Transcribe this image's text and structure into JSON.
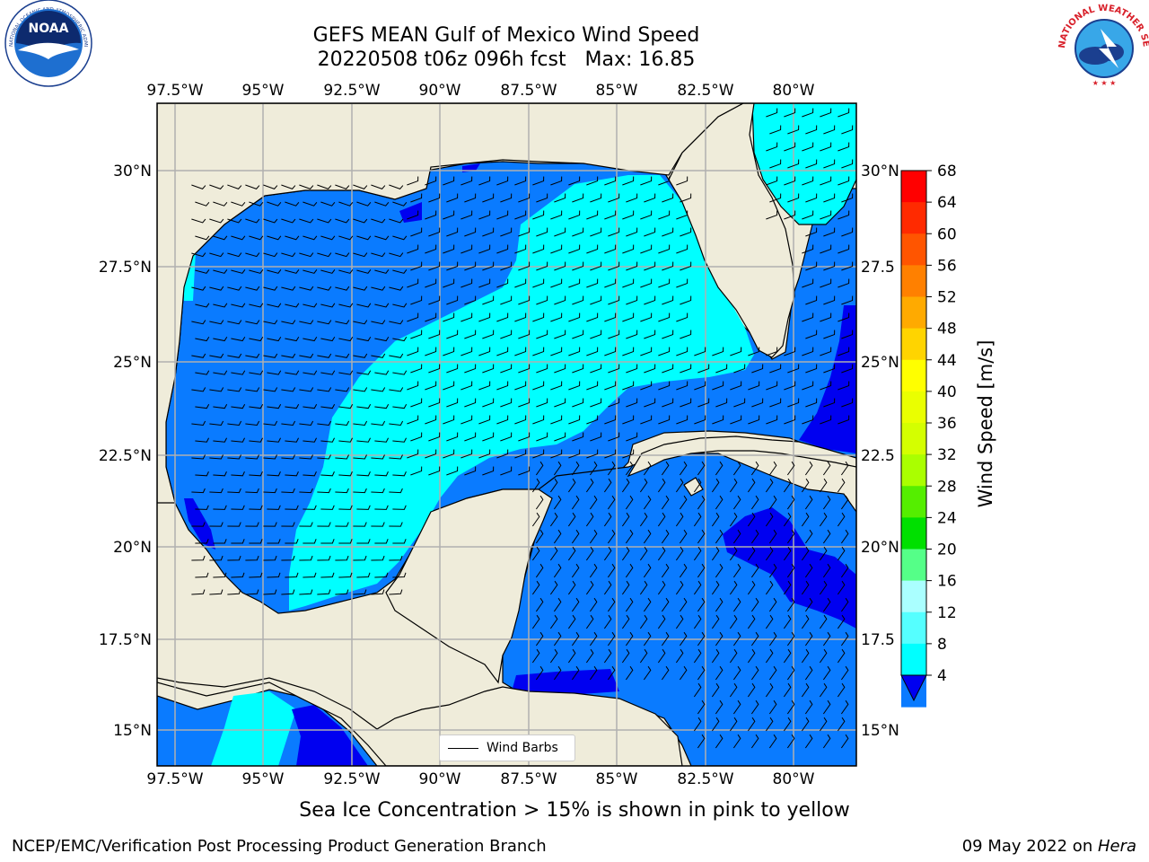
{
  "header": {
    "title_line1": "GEFS MEAN Gulf of Mexico Wind Speed",
    "title_line2": "20220508 t06z 096h fcst   Max: 16.85"
  },
  "map": {
    "lon_ticks": [
      "97.5°W",
      "95°W",
      "92.5°W",
      "90°W",
      "87.5°W",
      "85°W",
      "82.5°W",
      "80°W"
    ],
    "lat_ticks_left": [
      "30°N",
      "27.5°N",
      "25°N",
      "22.5°N",
      "20°N",
      "17.5°N",
      "15°N"
    ],
    "lat_ticks_right": [
      "30°N",
      "27.5",
      "25°N",
      "22.5",
      "20°N",
      "17.5",
      "15°N"
    ],
    "legend_label": "Wind Barbs",
    "colors": {
      "land": "#efecda",
      "speed_4_8": "#0a7bff",
      "speed_8_12": "#00ffff",
      "speed_lt_4": "#0000f0",
      "grid": "#b0b0b0"
    }
  },
  "colorbar": {
    "title": "Wind Speed [m/s]",
    "labels": [
      "68",
      "64",
      "60",
      "56",
      "52",
      "48",
      "44",
      "40",
      "36",
      "32",
      "28",
      "24",
      "20",
      "16",
      "12",
      "8",
      "4"
    ],
    "colors": [
      "#ff0000",
      "#ff2a00",
      "#ff5500",
      "#ff8000",
      "#ffaa00",
      "#ffd400",
      "#ffff00",
      "#eaff00",
      "#d4ff00",
      "#aaff00",
      "#55ee00",
      "#00e000",
      "#55ff88",
      "#aaffff",
      "#55ffff",
      "#00ffff",
      "#0a7bff"
    ],
    "under_color": "#0000f0"
  },
  "logos": {
    "noaa": "NOAA",
    "noaa_ring_text": "NATIONAL OCEANIC AND ATMOSPHERIC ADMINISTRATION · U.S. DEPARTMENT OF COMMERCE",
    "nws_ring_text": "NATIONAL WEATHER SERVICE"
  },
  "footer": {
    "note": "Sea Ice Concentration > 15% is shown in pink to yellow",
    "left": "NCEP/EMC/Verification Post Processing Product Generation Branch",
    "right_date": "09 May 2022 on ",
    "right_machine": "Hera"
  }
}
